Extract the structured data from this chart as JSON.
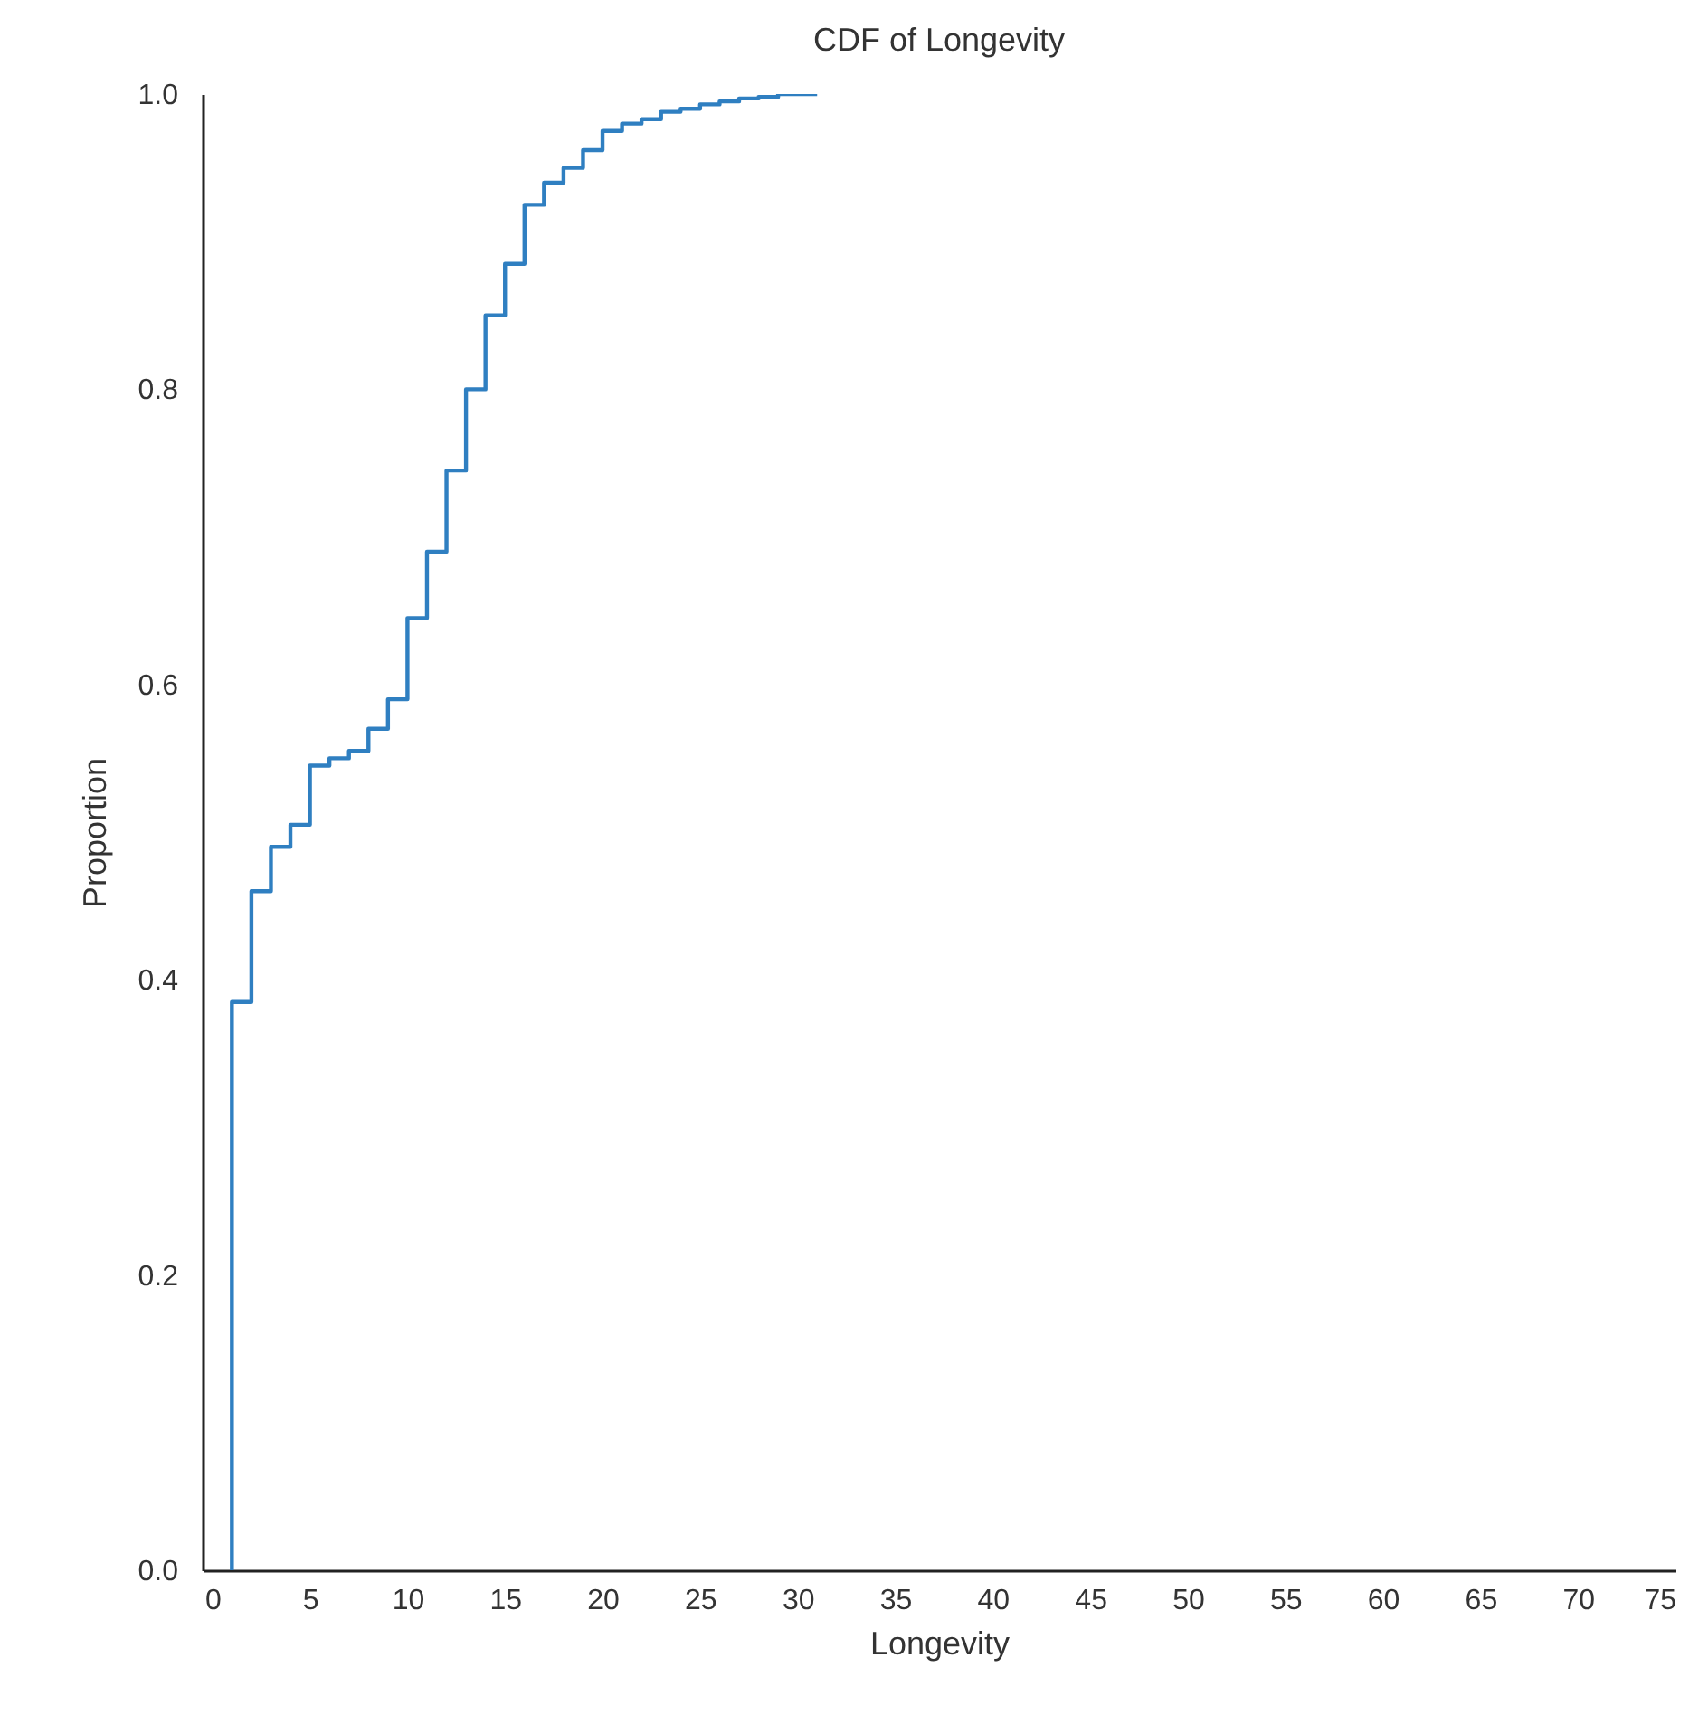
{
  "chart_data": {
    "type": "step",
    "title": "CDF of Longevity",
    "xlabel": "Longevity",
    "ylabel": "Proportion",
    "x": [
      1,
      1,
      2,
      3,
      4,
      5,
      6,
      7,
      8,
      9,
      10,
      11,
      12,
      13,
      14,
      15,
      16,
      17,
      18,
      19,
      20,
      21,
      22,
      23,
      24,
      25,
      26,
      27,
      28,
      29,
      31
    ],
    "series": [
      {
        "color": "#2f7fc1",
        "values": [
          0,
          0.385,
          0.46,
          0.49,
          0.505,
          0.545,
          0.55,
          0.555,
          0.57,
          0.59,
          0.645,
          0.69,
          0.745,
          0.8,
          0.85,
          0.885,
          0.925,
          0.94,
          0.95,
          0.962,
          0.975,
          0.98,
          0.983,
          0.988,
          0.99,
          0.993,
          0.995,
          0.997,
          0.998,
          1.0,
          1.0
        ]
      }
    ],
    "xlim": [
      -0.5,
      75
    ],
    "ylim": [
      0,
      1
    ],
    "xticks": [
      0,
      5,
      10,
      15,
      20,
      25,
      30,
      35,
      40,
      45,
      50,
      55,
      60,
      65,
      70,
      75
    ],
    "yticks": [
      {
        "value": 0,
        "label": "0.0"
      },
      {
        "value": 0.2,
        "label": "0.2"
      },
      {
        "value": 0.4,
        "label": "0.4"
      },
      {
        "value": 0.6,
        "label": "0.6"
      },
      {
        "value": 0.8,
        "label": "0.8"
      },
      {
        "value": 1,
        "label": "1.0"
      }
    ],
    "grid": false
  }
}
